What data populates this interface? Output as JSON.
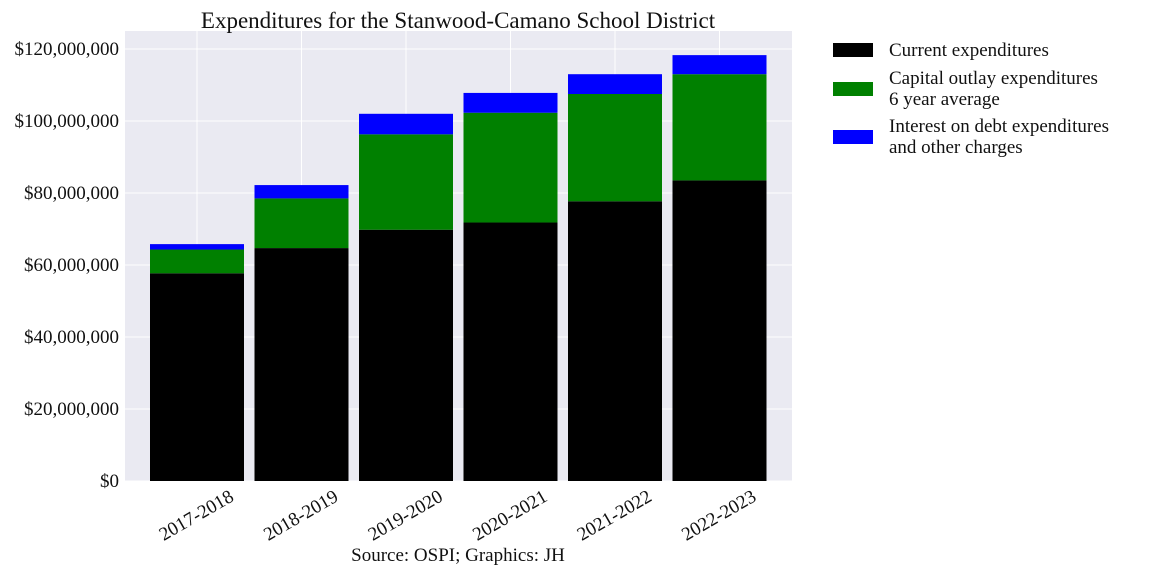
{
  "chart_data": {
    "type": "bar",
    "stacked": true,
    "title": "Expenditures for the Stanwood-Camano School District",
    "caption": "Source: OSPI; Graphics: JH",
    "xlabel": "",
    "ylabel": "",
    "categories": [
      "2017-2018",
      "2018-2019",
      "2019-2020",
      "2020-2021",
      "2021-2022",
      "2022-2023"
    ],
    "series": [
      {
        "name": "Current expenditures",
        "color": "#000000",
        "values": [
          57700000,
          64700000,
          69800000,
          71800000,
          77700000,
          83500000
        ]
      },
      {
        "name": [
          "Capital outlay expenditures",
          "6 year average"
        ],
        "color": "#008000",
        "values": [
          6600000,
          13800000,
          26500000,
          30500000,
          29800000,
          29500000
        ]
      },
      {
        "name": [
          "Interest on debt expenditures",
          "and other charges"
        ],
        "color": "#0000ff",
        "values": [
          1500000,
          3700000,
          5700000,
          5500000,
          5500000,
          5300000
        ]
      }
    ],
    "yticks": [
      "$0",
      "$20,000,000",
      "$40,000,000",
      "$60,000,000",
      "$80,000,000",
      "$100,000,000",
      "$120,000,000"
    ],
    "ylim": [
      0,
      125000000
    ],
    "grid": true,
    "legend_position": "outside-right",
    "background": "#eaeaf2"
  }
}
